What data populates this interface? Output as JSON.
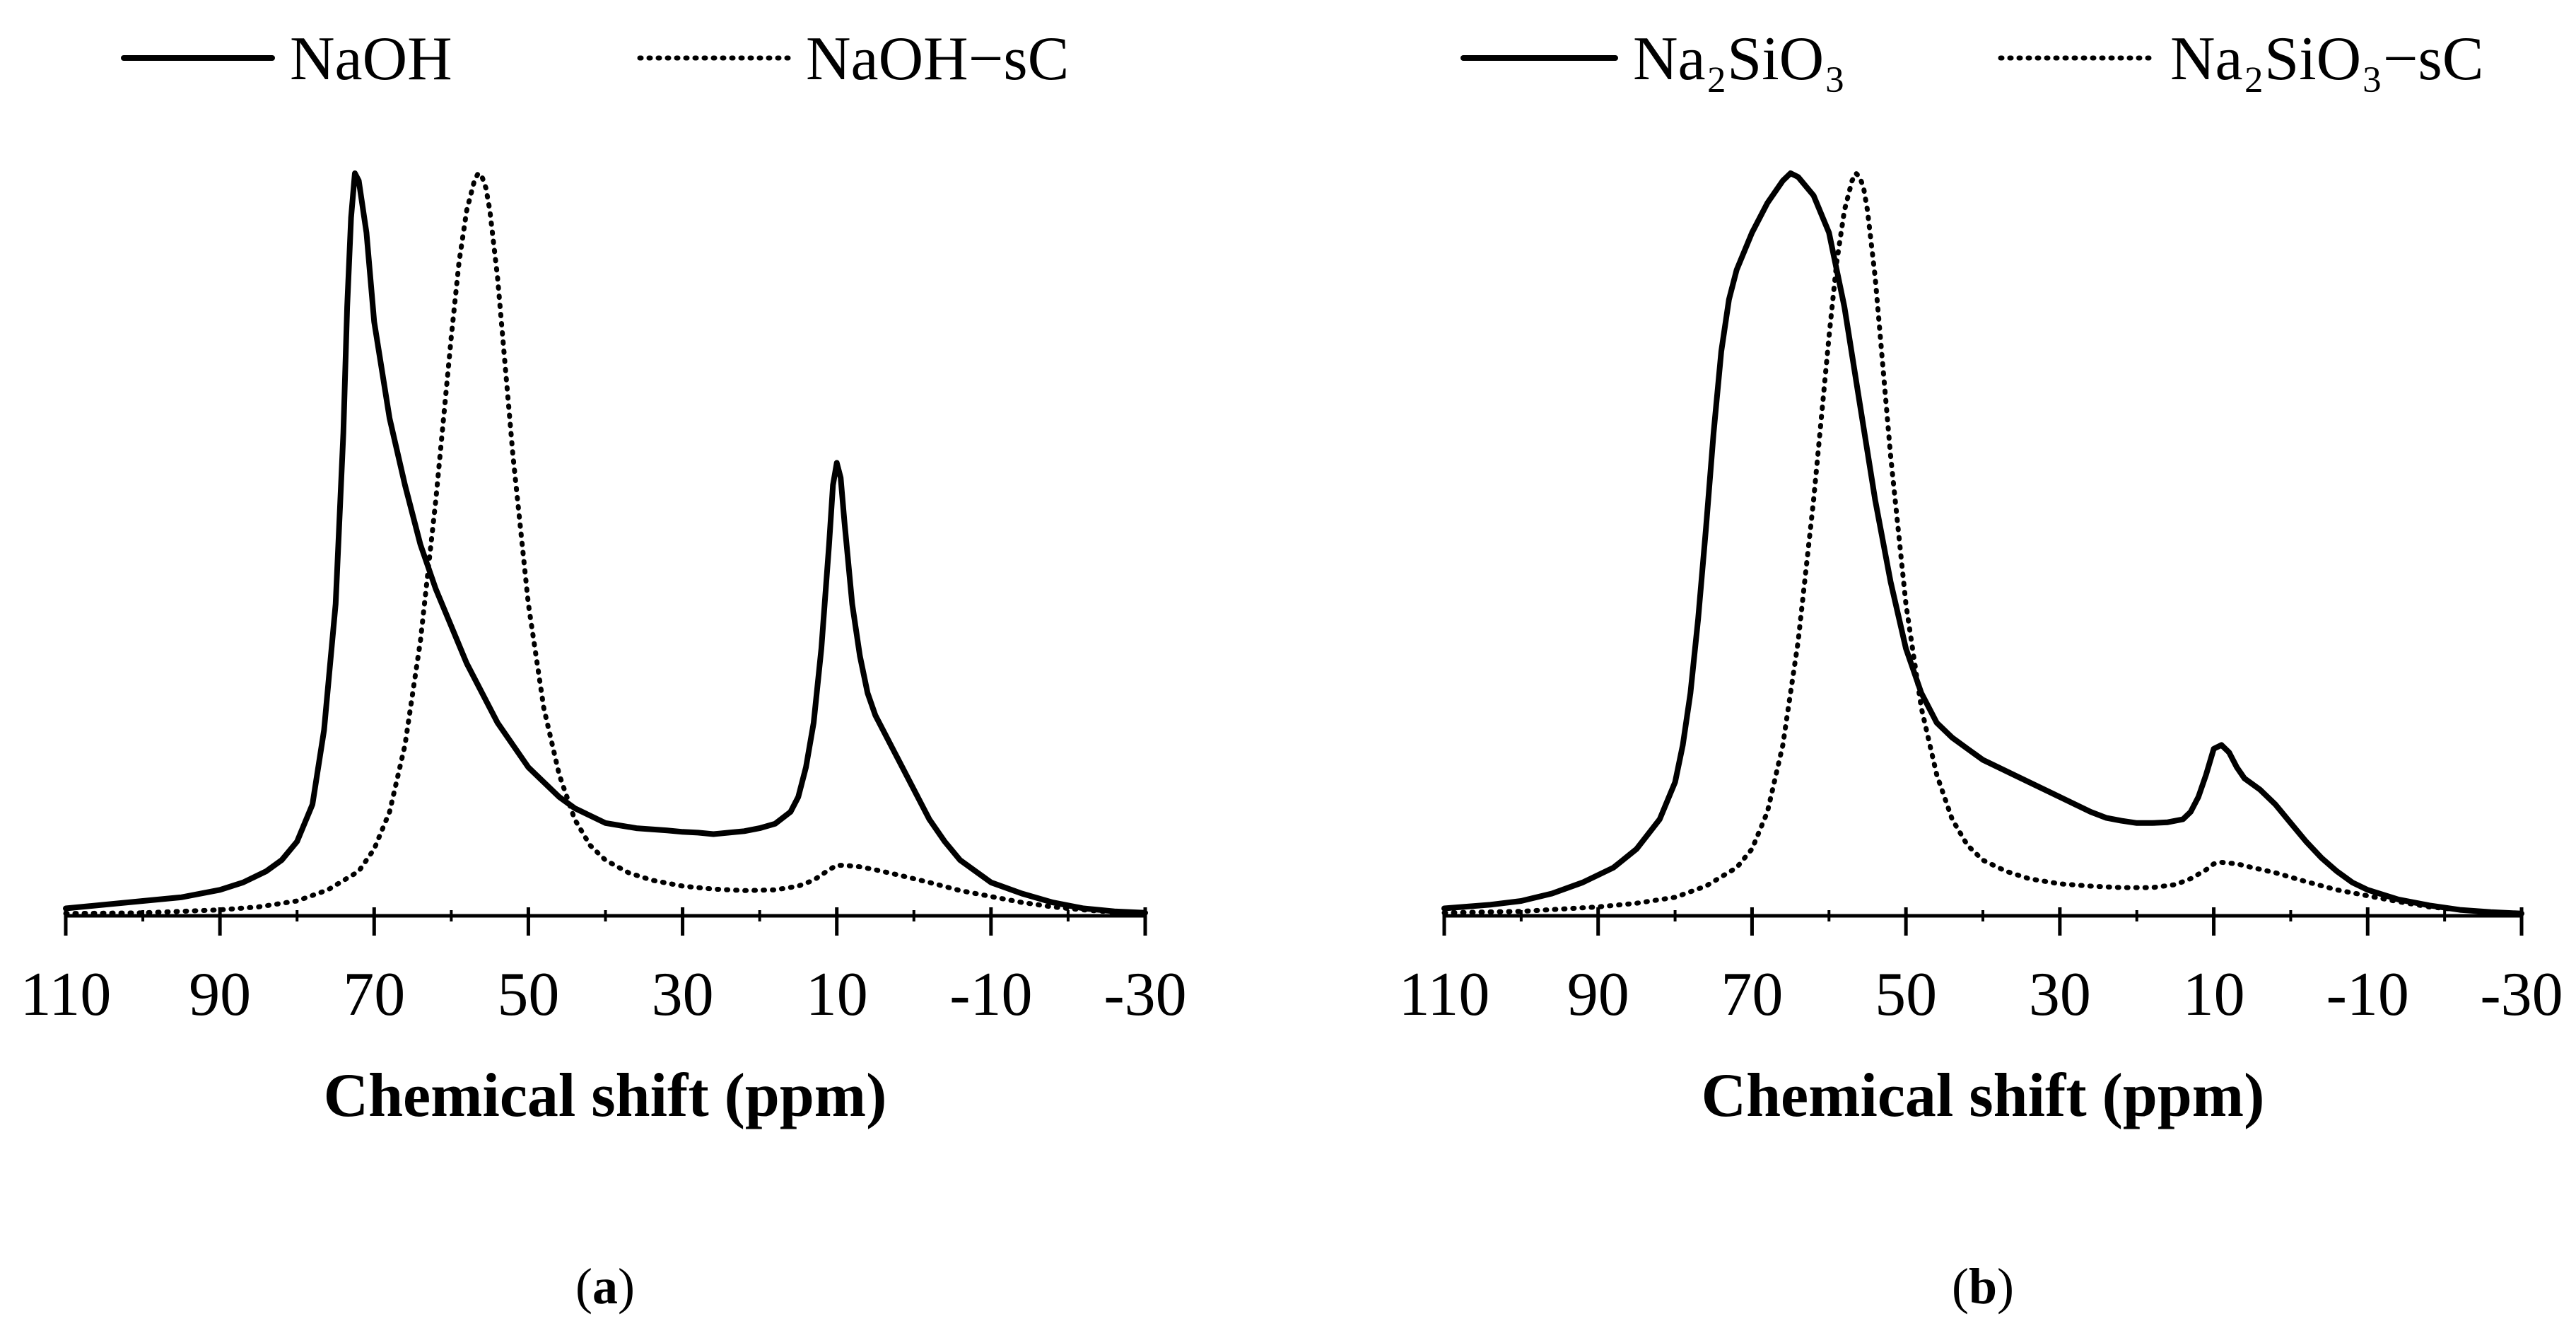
{
  "chart_data": [
    {
      "type": "line",
      "panel_label": "a",
      "xlabel": "Chemical shift (ppm)",
      "ylabel": "",
      "x_reversed": true,
      "xlim": [
        110,
        -30
      ],
      "ylim": [
        0,
        1.0
      ],
      "x_ticks": [
        110,
        90,
        70,
        50,
        30,
        10,
        -10,
        -30
      ],
      "x_tick_labels": [
        "110",
        "90",
        "70",
        "50",
        "30",
        "10",
        "-10",
        "-30"
      ],
      "legend_position": "top",
      "series": [
        {
          "name": "NaOH",
          "style": "solid",
          "x": [
            110,
            100,
            95,
            90,
            87,
            84,
            82,
            80,
            78,
            76.5,
            75,
            74,
            73.5,
            73,
            72.5,
            72,
            71,
            70,
            68,
            66,
            64,
            62,
            60,
            58,
            56,
            54,
            52,
            50,
            48,
            46,
            44,
            42,
            40,
            36,
            32,
            30,
            28,
            26,
            24,
            22,
            20,
            18,
            16,
            15,
            14,
            13,
            12,
            11,
            10.5,
            10,
            9.5,
            9,
            8,
            7,
            6,
            5,
            4,
            2,
            0,
            -2,
            -4,
            -6,
            -8,
            -10,
            -14,
            -18,
            -22,
            -26,
            -30
          ],
          "y": [
            0.01,
            0.02,
            0.025,
            0.035,
            0.045,
            0.06,
            0.075,
            0.1,
            0.15,
            0.25,
            0.42,
            0.65,
            0.82,
            0.94,
            1.0,
            0.99,
            0.92,
            0.8,
            0.67,
            0.58,
            0.5,
            0.44,
            0.39,
            0.34,
            0.3,
            0.26,
            0.23,
            0.2,
            0.18,
            0.16,
            0.145,
            0.135,
            0.125,
            0.118,
            0.115,
            0.113,
            0.112,
            0.11,
            0.112,
            0.114,
            0.118,
            0.124,
            0.14,
            0.16,
            0.2,
            0.26,
            0.36,
            0.5,
            0.58,
            0.61,
            0.59,
            0.53,
            0.42,
            0.35,
            0.3,
            0.27,
            0.25,
            0.21,
            0.17,
            0.13,
            0.1,
            0.075,
            0.06,
            0.045,
            0.03,
            0.018,
            0.01,
            0.006,
            0.004
          ]
        },
        {
          "name": "NaOH−sC",
          "style": "dotted",
          "x": [
            110,
            100,
            90,
            85,
            80,
            76,
            72,
            70,
            68,
            66,
            64,
            62,
            60,
            59,
            58,
            57,
            56.5,
            56,
            55.5,
            55,
            54,
            53,
            52,
            50,
            48,
            46,
            44,
            42,
            40,
            37,
            34,
            30,
            26,
            22,
            18,
            15,
            13,
            11,
            10,
            9,
            7,
            5,
            2,
            -2,
            -6,
            -10,
            -14,
            -18,
            -22,
            -26,
            -30
          ],
          "y": [
            0.003,
            0.004,
            0.008,
            0.012,
            0.02,
            0.035,
            0.06,
            0.09,
            0.14,
            0.23,
            0.37,
            0.56,
            0.78,
            0.88,
            0.95,
            0.99,
            1.0,
            0.995,
            0.98,
            0.95,
            0.86,
            0.74,
            0.62,
            0.42,
            0.28,
            0.19,
            0.13,
            0.095,
            0.075,
            0.058,
            0.048,
            0.04,
            0.036,
            0.034,
            0.035,
            0.04,
            0.048,
            0.062,
            0.068,
            0.068,
            0.066,
            0.062,
            0.055,
            0.045,
            0.034,
            0.026,
            0.018,
            0.012,
            0.008,
            0.005,
            0.003
          ]
        }
      ]
    },
    {
      "type": "line",
      "panel_label": "b",
      "xlabel": "Chemical shift (ppm)",
      "ylabel": "",
      "x_reversed": true,
      "xlim": [
        110,
        -30
      ],
      "ylim": [
        0,
        1.0
      ],
      "x_ticks": [
        110,
        90,
        70,
        50,
        30,
        10,
        -10,
        -30
      ],
      "x_tick_labels": [
        "110",
        "90",
        "70",
        "50",
        "30",
        "10",
        "-10",
        "-30"
      ],
      "legend_position": "top",
      "series": [
        {
          "name": "Na₂SiO₃",
          "style": "solid",
          "x": [
            110,
            104,
            100,
            96,
            92,
            88,
            85,
            82,
            80,
            79,
            78,
            77,
            76,
            75,
            74,
            73,
            72,
            70,
            68,
            66,
            65,
            64,
            62,
            60,
            58,
            56,
            54,
            52,
            50,
            48,
            46,
            44,
            42,
            40,
            38,
            36,
            34,
            32,
            30,
            28,
            26,
            24,
            22,
            20,
            18,
            16,
            14,
            13,
            12,
            11,
            10,
            9,
            8,
            7,
            6,
            4,
            2,
            0,
            -2,
            -4,
            -6,
            -8,
            -10,
            -14,
            -18,
            -22,
            -26,
            -30
          ],
          "y": [
            0.01,
            0.015,
            0.02,
            0.03,
            0.045,
            0.065,
            0.09,
            0.13,
            0.18,
            0.23,
            0.3,
            0.4,
            0.52,
            0.65,
            0.76,
            0.83,
            0.87,
            0.92,
            0.96,
            0.99,
            1.0,
            0.995,
            0.97,
            0.92,
            0.82,
            0.69,
            0.56,
            0.45,
            0.36,
            0.3,
            0.26,
            0.24,
            0.225,
            0.21,
            0.2,
            0.19,
            0.18,
            0.17,
            0.16,
            0.15,
            0.14,
            0.132,
            0.128,
            0.125,
            0.125,
            0.126,
            0.13,
            0.14,
            0.16,
            0.19,
            0.225,
            0.23,
            0.22,
            0.2,
            0.185,
            0.17,
            0.15,
            0.125,
            0.1,
            0.078,
            0.06,
            0.045,
            0.035,
            0.022,
            0.014,
            0.008,
            0.005,
            0.003
          ]
        },
        {
          "name": "Na₂SiO₃−sC",
          "style": "dotted",
          "x": [
            110,
            100,
            90,
            85,
            80,
            76,
            72,
            70,
            68,
            66,
            64,
            62,
            60,
            59,
            58,
            57,
            56.5,
            56,
            55.5,
            55,
            54,
            53,
            52,
            50,
            48,
            46,
            44,
            42,
            40,
            37,
            34,
            30,
            26,
            22,
            18,
            15,
            13,
            11,
            10,
            9,
            7,
            5,
            2,
            -2,
            -6,
            -10,
            -14,
            -18,
            -22,
            -26,
            -30
          ],
          "y": [
            0.004,
            0.006,
            0.012,
            0.017,
            0.025,
            0.04,
            0.065,
            0.09,
            0.14,
            0.23,
            0.37,
            0.56,
            0.78,
            0.88,
            0.95,
            0.99,
            1.0,
            0.995,
            0.98,
            0.95,
            0.86,
            0.74,
            0.62,
            0.42,
            0.28,
            0.19,
            0.13,
            0.095,
            0.075,
            0.06,
            0.05,
            0.043,
            0.04,
            0.038,
            0.038,
            0.042,
            0.05,
            0.062,
            0.07,
            0.072,
            0.07,
            0.065,
            0.058,
            0.046,
            0.035,
            0.027,
            0.019,
            0.012,
            0.008,
            0.005,
            0.003
          ]
        }
      ]
    }
  ]
}
